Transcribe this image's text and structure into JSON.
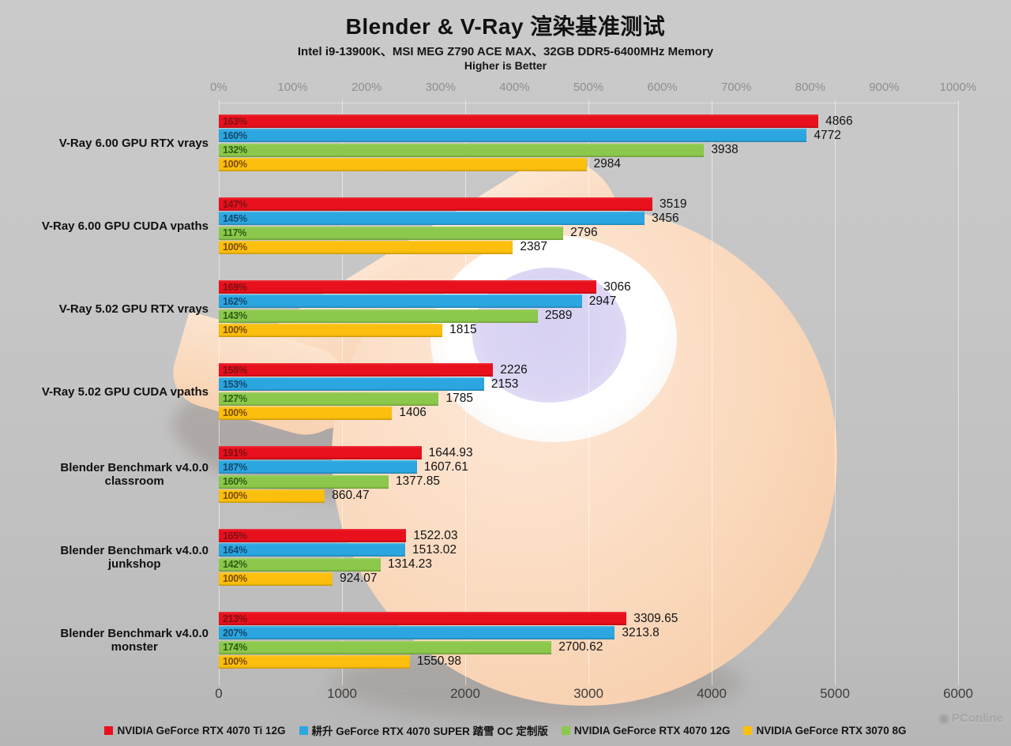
{
  "title": "Blender & V-Ray 渲染基准测试",
  "subtitle": "Intel i9-13900K、MSI MEG Z790 ACE MAX、32GB DDR5-6400MHz Memory",
  "note": "Higher is Better",
  "site_watermark": "PConline",
  "chart_data": {
    "type": "bar",
    "orientation": "horizontal",
    "grid": "vertical gridlines at each bottom-axis tick",
    "legend_position": "bottom",
    "top_axis": {
      "min": 0,
      "max": 1000,
      "unit": "%",
      "ticks": [
        "0%",
        "100%",
        "200%",
        "300%",
        "400%",
        "500%",
        "600%",
        "700%",
        "800%",
        "900%",
        "1000%"
      ]
    },
    "bottom_axis": {
      "min": 0,
      "max": 6000,
      "ticks": [
        "0",
        "1000",
        "2000",
        "3000",
        "4000",
        "5000",
        "6000"
      ]
    },
    "series": [
      {
        "name": "NVIDIA GeForce RTX 4070 Ti 12G",
        "color": "#e8101c",
        "pct_color": "#7d1016"
      },
      {
        "name": "耕升 GeForce RTX 4070 SUPER 踏雪 OC 定制版",
        "color": "#2ca6e0",
        "pct_color": "#14496b"
      },
      {
        "name": "NVIDIA GeForce RTX 4070 12G",
        "color": "#8cc84b",
        "pct_color": "#2f5d14"
      },
      {
        "name": "NVIDIA GeForce RTX 3070 8G",
        "color": "#fcbf0e",
        "pct_color": "#7a4c00"
      }
    ],
    "groups": [
      {
        "label_lines": [
          "V-Ray 6.00 GPU RTX vrays"
        ],
        "bars": [
          {
            "percent": "163%",
            "value": 4866,
            "display": "4866"
          },
          {
            "percent": "160%",
            "value": 4772,
            "display": "4772"
          },
          {
            "percent": "132%",
            "value": 3938,
            "display": "3938"
          },
          {
            "percent": "100%",
            "value": 2984,
            "display": "2984"
          }
        ]
      },
      {
        "label_lines": [
          "V-Ray 6.00 GPU CUDA vpaths"
        ],
        "bars": [
          {
            "percent": "147%",
            "value": 3519,
            "display": "3519"
          },
          {
            "percent": "145%",
            "value": 3456,
            "display": "3456"
          },
          {
            "percent": "117%",
            "value": 2796,
            "display": "2796"
          },
          {
            "percent": "100%",
            "value": 2387,
            "display": "2387"
          }
        ]
      },
      {
        "label_lines": [
          "V-Ray 5.02 GPU RTX vrays"
        ],
        "bars": [
          {
            "percent": "169%",
            "value": 3066,
            "display": "3066"
          },
          {
            "percent": "162%",
            "value": 2947,
            "display": "2947"
          },
          {
            "percent": "143%",
            "value": 2589,
            "display": "2589"
          },
          {
            "percent": "100%",
            "value": 1815,
            "display": "1815"
          }
        ]
      },
      {
        "label_lines": [
          "V-Ray 5.02 GPU CUDA vpaths"
        ],
        "bars": [
          {
            "percent": "158%",
            "value": 2226,
            "display": "2226"
          },
          {
            "percent": "153%",
            "value": 2153,
            "display": "2153"
          },
          {
            "percent": "127%",
            "value": 1785,
            "display": "1785"
          },
          {
            "percent": "100%",
            "value": 1406,
            "display": "1406"
          }
        ]
      },
      {
        "label_lines": [
          "Blender Benchmark v4.0.0",
          "classroom"
        ],
        "bars": [
          {
            "percent": "191%",
            "value": 1644.93,
            "display": "1644.93"
          },
          {
            "percent": "187%",
            "value": 1607.61,
            "display": "1607.61"
          },
          {
            "percent": "160%",
            "value": 1377.85,
            "display": "1377.85"
          },
          {
            "percent": "100%",
            "value": 860.47,
            "display": "860.47"
          }
        ]
      },
      {
        "label_lines": [
          "Blender Benchmark v4.0.0",
          "junkshop"
        ],
        "bars": [
          {
            "percent": "165%",
            "value": 1522.03,
            "display": "1522.03"
          },
          {
            "percent": "164%",
            "value": 1513.02,
            "display": "1513.02"
          },
          {
            "percent": "142%",
            "value": 1314.23,
            "display": "1314.23"
          },
          {
            "percent": "100%",
            "value": 924.07,
            "display": "924.07"
          }
        ]
      },
      {
        "label_lines": [
          "Blender Benchmark v4.0.0",
          "monster"
        ],
        "bars": [
          {
            "percent": "213%",
            "value": 3309.65,
            "display": "3309.65"
          },
          {
            "percent": "207%",
            "value": 3213.8,
            "display": "3213.8"
          },
          {
            "percent": "174%",
            "value": 2700.62,
            "display": "2700.62"
          },
          {
            "percent": "100%",
            "value": 1550.98,
            "display": "1550.98"
          }
        ]
      }
    ]
  }
}
